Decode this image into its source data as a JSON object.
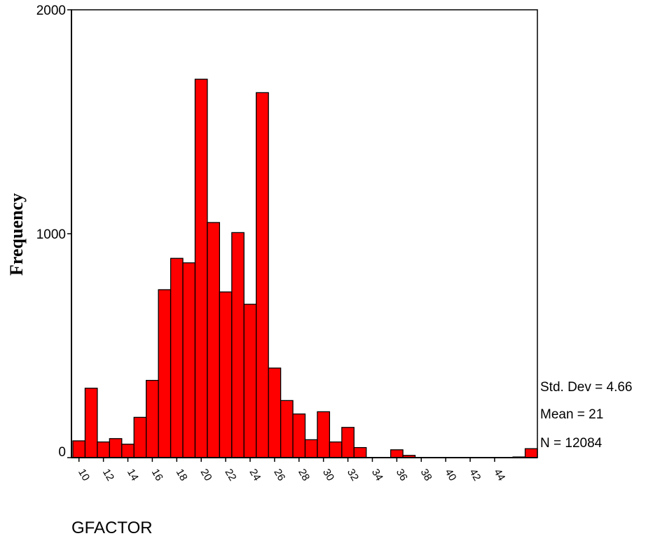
{
  "chart_data": {
    "type": "bar",
    "ylabel": "Frequency",
    "xlabel": "GFACTOR",
    "ylim": [
      0,
      2000
    ],
    "yticks": [
      "0",
      "1000",
      "2000"
    ],
    "xtick_labels": [
      "10",
      "12",
      "14",
      "16",
      "18",
      "20",
      "22",
      "24",
      "26",
      "28",
      "30",
      "32",
      "34",
      "36",
      "38",
      "40",
      "42",
      "44"
    ],
    "bar_color": "#ff0000",
    "grid": false,
    "bin_start": 9.5,
    "bin_width": 1,
    "values": [
      75,
      310,
      70,
      85,
      60,
      180,
      345,
      750,
      890,
      870,
      1690,
      1050,
      740,
      1005,
      685,
      1630,
      400,
      255,
      195,
      80,
      205,
      70,
      135,
      45,
      0,
      0,
      35,
      10,
      0,
      0,
      0,
      0,
      0,
      0,
      0,
      0,
      3,
      40
    ],
    "stats": [
      "Std. Dev = 4.66",
      "Mean = 21",
      "N = 12084"
    ]
  }
}
